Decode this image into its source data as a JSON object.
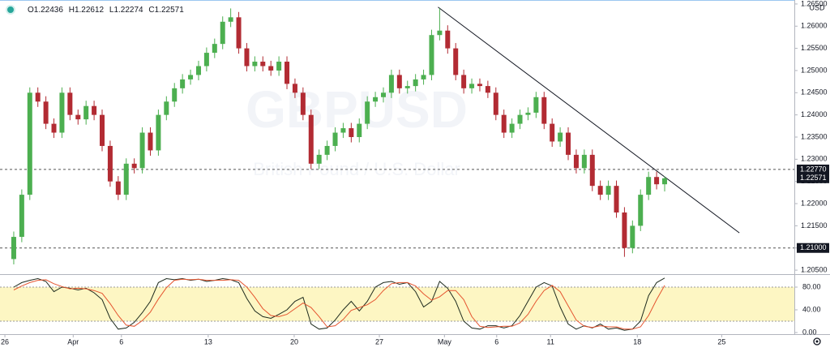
{
  "chart_data": {
    "type": "candlestick",
    "watermark": "GBPUSD",
    "watermark_subtitle": "British Pound / U.S. Dollar",
    "currency": "USD",
    "ohlc_labels": [
      "O",
      "H",
      "L",
      "C"
    ],
    "up_color": "#4caf50",
    "down_color": "#b22b33",
    "xlim": [
      -1.71,
      97.14
    ],
    "xticks": [
      {
        "value": -1.1,
        "label": "26"
      },
      {
        "value": 7.4,
        "label": "Apr"
      },
      {
        "value": 13.4,
        "label": "6"
      },
      {
        "value": 24.2,
        "label": "13"
      },
      {
        "value": 34.9,
        "label": "20"
      },
      {
        "value": 45.5,
        "label": "27"
      },
      {
        "value": 53.6,
        "label": "May"
      },
      {
        "value": 60.1,
        "label": "6"
      },
      {
        "value": 66.8,
        "label": "11"
      },
      {
        "value": 77.6,
        "label": "18"
      },
      {
        "value": 88.1,
        "label": "25"
      }
    ],
    "ylim": [
      1.2041,
      1.2659
    ],
    "yticks": [
      {
        "value": 1.205,
        "label": "1.20500"
      },
      {
        "value": 1.21,
        "label": "1.21000"
      },
      {
        "value": 1.215,
        "label": "1.21500"
      },
      {
        "value": 1.22,
        "label": "1.22000"
      },
      {
        "value": 1.225,
        "label": "1.22500"
      },
      {
        "value": 1.23,
        "label": "1.23000"
      },
      {
        "value": 1.235,
        "label": "1.23500"
      },
      {
        "value": 1.24,
        "label": "1.24000"
      },
      {
        "value": 1.245,
        "label": "1.24500"
      },
      {
        "value": 1.25,
        "label": "1.25000"
      },
      {
        "value": 1.255,
        "label": "1.25500"
      },
      {
        "value": 1.26,
        "label": "1.26000"
      },
      {
        "value": 1.265,
        "label": "1.26500"
      }
    ],
    "hlines": [
      {
        "value": 1.2277,
        "label": "1.22770"
      },
      {
        "value": 1.21,
        "label": "1.21000"
      }
    ],
    "trendline": {
      "x": [
        52.8,
        90.3
      ],
      "y": [
        1.2643,
        1.2134
      ]
    },
    "candles": [
      [
        1.2075,
        1.2137,
        1.2063,
        1.2125
      ],
      [
        1.2125,
        1.2232,
        1.2113,
        1.222
      ],
      [
        1.222,
        1.2462,
        1.2208,
        1.245
      ],
      [
        1.245,
        1.2462,
        1.2418,
        1.243
      ],
      [
        1.243,
        1.2442,
        1.2368,
        1.238
      ],
      [
        1.238,
        1.2392,
        1.2348,
        1.236
      ],
      [
        1.236,
        1.2462,
        1.2348,
        1.245
      ],
      [
        1.245,
        1.2462,
        1.2388,
        1.24
      ],
      [
        1.24,
        1.2412,
        1.2378,
        1.239
      ],
      [
        1.239,
        1.2432,
        1.2378,
        1.242
      ],
      [
        1.242,
        1.2432,
        1.2388,
        1.24
      ],
      [
        1.24,
        1.2412,
        1.2318,
        1.233
      ],
      [
        1.233,
        1.2342,
        1.2238,
        1.225
      ],
      [
        1.225,
        1.2262,
        1.2208,
        1.222
      ],
      [
        1.222,
        1.2302,
        1.2208,
        1.229
      ],
      [
        1.229,
        1.2302,
        1.2268,
        1.228
      ],
      [
        1.228,
        1.2372,
        1.2268,
        1.236
      ],
      [
        1.236,
        1.2372,
        1.2308,
        1.232
      ],
      [
        1.232,
        1.2412,
        1.2308,
        1.24
      ],
      [
        1.24,
        1.2442,
        1.2388,
        1.243
      ],
      [
        1.243,
        1.2472,
        1.2418,
        1.246
      ],
      [
        1.246,
        1.2492,
        1.2448,
        1.248
      ],
      [
        1.248,
        1.2502,
        1.2468,
        1.249
      ],
      [
        1.249,
        1.2522,
        1.2478,
        1.251
      ],
      [
        1.251,
        1.2552,
        1.2498,
        1.254
      ],
      [
        1.254,
        1.2572,
        1.2528,
        1.256
      ],
      [
        1.256,
        1.2622,
        1.2548,
        1.261
      ],
      [
        1.261,
        1.264,
        1.2598,
        1.262
      ],
      [
        1.262,
        1.2632,
        1.2538,
        1.255
      ],
      [
        1.255,
        1.2562,
        1.2498,
        1.251
      ],
      [
        1.251,
        1.2532,
        1.2498,
        1.252
      ],
      [
        1.252,
        1.2532,
        1.2498,
        1.251
      ],
      [
        1.251,
        1.2522,
        1.2488,
        1.25
      ],
      [
        1.25,
        1.2532,
        1.2488,
        1.252
      ],
      [
        1.252,
        1.2532,
        1.2458,
        1.247
      ],
      [
        1.247,
        1.2482,
        1.2438,
        1.245
      ],
      [
        1.245,
        1.2462,
        1.2388,
        1.24
      ],
      [
        1.24,
        1.2412,
        1.2278,
        1.229
      ],
      [
        1.229,
        1.2322,
        1.2278,
        1.231
      ],
      [
        1.231,
        1.2342,
        1.2298,
        1.233
      ],
      [
        1.233,
        1.2372,
        1.2318,
        1.236
      ],
      [
        1.236,
        1.2382,
        1.2348,
        1.237
      ],
      [
        1.237,
        1.2382,
        1.2338,
        1.235
      ],
      [
        1.235,
        1.2392,
        1.2338,
        1.238
      ],
      [
        1.238,
        1.2442,
        1.2368,
        1.243
      ],
      [
        1.243,
        1.2452,
        1.2418,
        1.244
      ],
      [
        1.244,
        1.2462,
        1.2428,
        1.245
      ],
      [
        1.245,
        1.2502,
        1.2438,
        1.249
      ],
      [
        1.249,
        1.2502,
        1.2448,
        1.246
      ],
      [
        1.246,
        1.2477,
        1.2448,
        1.2465
      ],
      [
        1.2465,
        1.2492,
        1.2453,
        1.248
      ],
      [
        1.248,
        1.2502,
        1.2468,
        1.249
      ],
      [
        1.249,
        1.2592,
        1.2478,
        1.258
      ],
      [
        1.258,
        1.264,
        1.2568,
        1.259
      ],
      [
        1.259,
        1.2602,
        1.2538,
        1.255
      ],
      [
        1.255,
        1.2562,
        1.2478,
        1.249
      ],
      [
        1.249,
        1.2502,
        1.2448,
        1.246
      ],
      [
        1.246,
        1.2482,
        1.2448,
        1.247
      ],
      [
        1.247,
        1.2482,
        1.2453,
        1.2465
      ],
      [
        1.2465,
        1.2477,
        1.2438,
        1.245
      ],
      [
        1.245,
        1.2462,
        1.2388,
        1.24
      ],
      [
        1.24,
        1.2412,
        1.2348,
        1.236
      ],
      [
        1.236,
        1.2392,
        1.2348,
        1.238
      ],
      [
        1.238,
        1.2412,
        1.2368,
        1.24
      ],
      [
        1.24,
        1.2417,
        1.2388,
        1.2405
      ],
      [
        1.2405,
        1.2452,
        1.2393,
        1.244
      ],
      [
        1.244,
        1.2452,
        1.2368,
        1.238
      ],
      [
        1.238,
        1.2392,
        1.2328,
        1.234
      ],
      [
        1.234,
        1.2372,
        1.2328,
        1.236
      ],
      [
        1.236,
        1.2372,
        1.2298,
        1.231
      ],
      [
        1.231,
        1.2322,
        1.2268,
        1.228
      ],
      [
        1.228,
        1.2322,
        1.2268,
        1.231
      ],
      [
        1.231,
        1.2322,
        1.2228,
        1.224
      ],
      [
        1.224,
        1.2252,
        1.2208,
        1.222
      ],
      [
        1.222,
        1.2252,
        1.2208,
        1.224
      ],
      [
        1.224,
        1.2252,
        1.2168,
        1.218
      ],
      [
        1.218,
        1.2192,
        1.208,
        1.21
      ],
      [
        1.21,
        1.2162,
        1.2088,
        1.215
      ],
      [
        1.215,
        1.2232,
        1.2138,
        1.222
      ],
      [
        1.222,
        1.2272,
        1.2208,
        1.226
      ],
      [
        1.226,
        1.2272,
        1.2232,
        1.22436
      ],
      [
        1.22436,
        1.22612,
        1.22274,
        1.22571
      ]
    ],
    "oscillator": {
      "ylim": [
        0,
        100
      ],
      "band": [
        20,
        80
      ],
      "band_color": "#fdf6c3",
      "yticks": [
        {
          "value": 0,
          "label": "0.00"
        },
        {
          "value": 40,
          "label": "40.00"
        },
        {
          "value": 80,
          "label": "80.00"
        }
      ],
      "series": [
        {
          "color": "#1e2b1e",
          "values": [
            80,
            88,
            92,
            95,
            90,
            72,
            80,
            78,
            75,
            78,
            70,
            58,
            25,
            6,
            8,
            18,
            35,
            55,
            88,
            95,
            93,
            95,
            92,
            94,
            90,
            92,
            95,
            93,
            88,
            60,
            38,
            28,
            25,
            32,
            40,
            55,
            62,
            15,
            6,
            8,
            22,
            40,
            55,
            38,
            55,
            80,
            88,
            90,
            85,
            88,
            72,
            45,
            55,
            90,
            78,
            55,
            20,
            8,
            6,
            12,
            12,
            8,
            12,
            30,
            55,
            80,
            88,
            82,
            45,
            15,
            6,
            12,
            8,
            15,
            6,
            8,
            4,
            6,
            20,
            65,
            88,
            96
          ]
        },
        {
          "color": "#e5542f",
          "values": [
            75,
            82,
            88,
            92,
            93,
            86,
            81,
            77,
            78,
            77,
            74,
            69,
            51,
            30,
            13,
            11,
            21,
            36,
            59,
            79,
            92,
            94,
            93,
            94,
            92,
            92,
            92,
            93,
            92,
            80,
            62,
            42,
            30,
            28,
            32,
            42,
            52,
            44,
            28,
            10,
            12,
            23,
            39,
            44,
            49,
            58,
            74,
            86,
            88,
            88,
            82,
            68,
            57,
            63,
            74,
            74,
            58,
            28,
            11,
            9,
            10,
            11,
            11,
            17,
            32,
            55,
            74,
            83,
            72,
            47,
            22,
            11,
            9,
            12,
            10,
            10,
            6,
            6,
            10,
            30,
            58,
            83
          ]
        }
      ]
    }
  }
}
